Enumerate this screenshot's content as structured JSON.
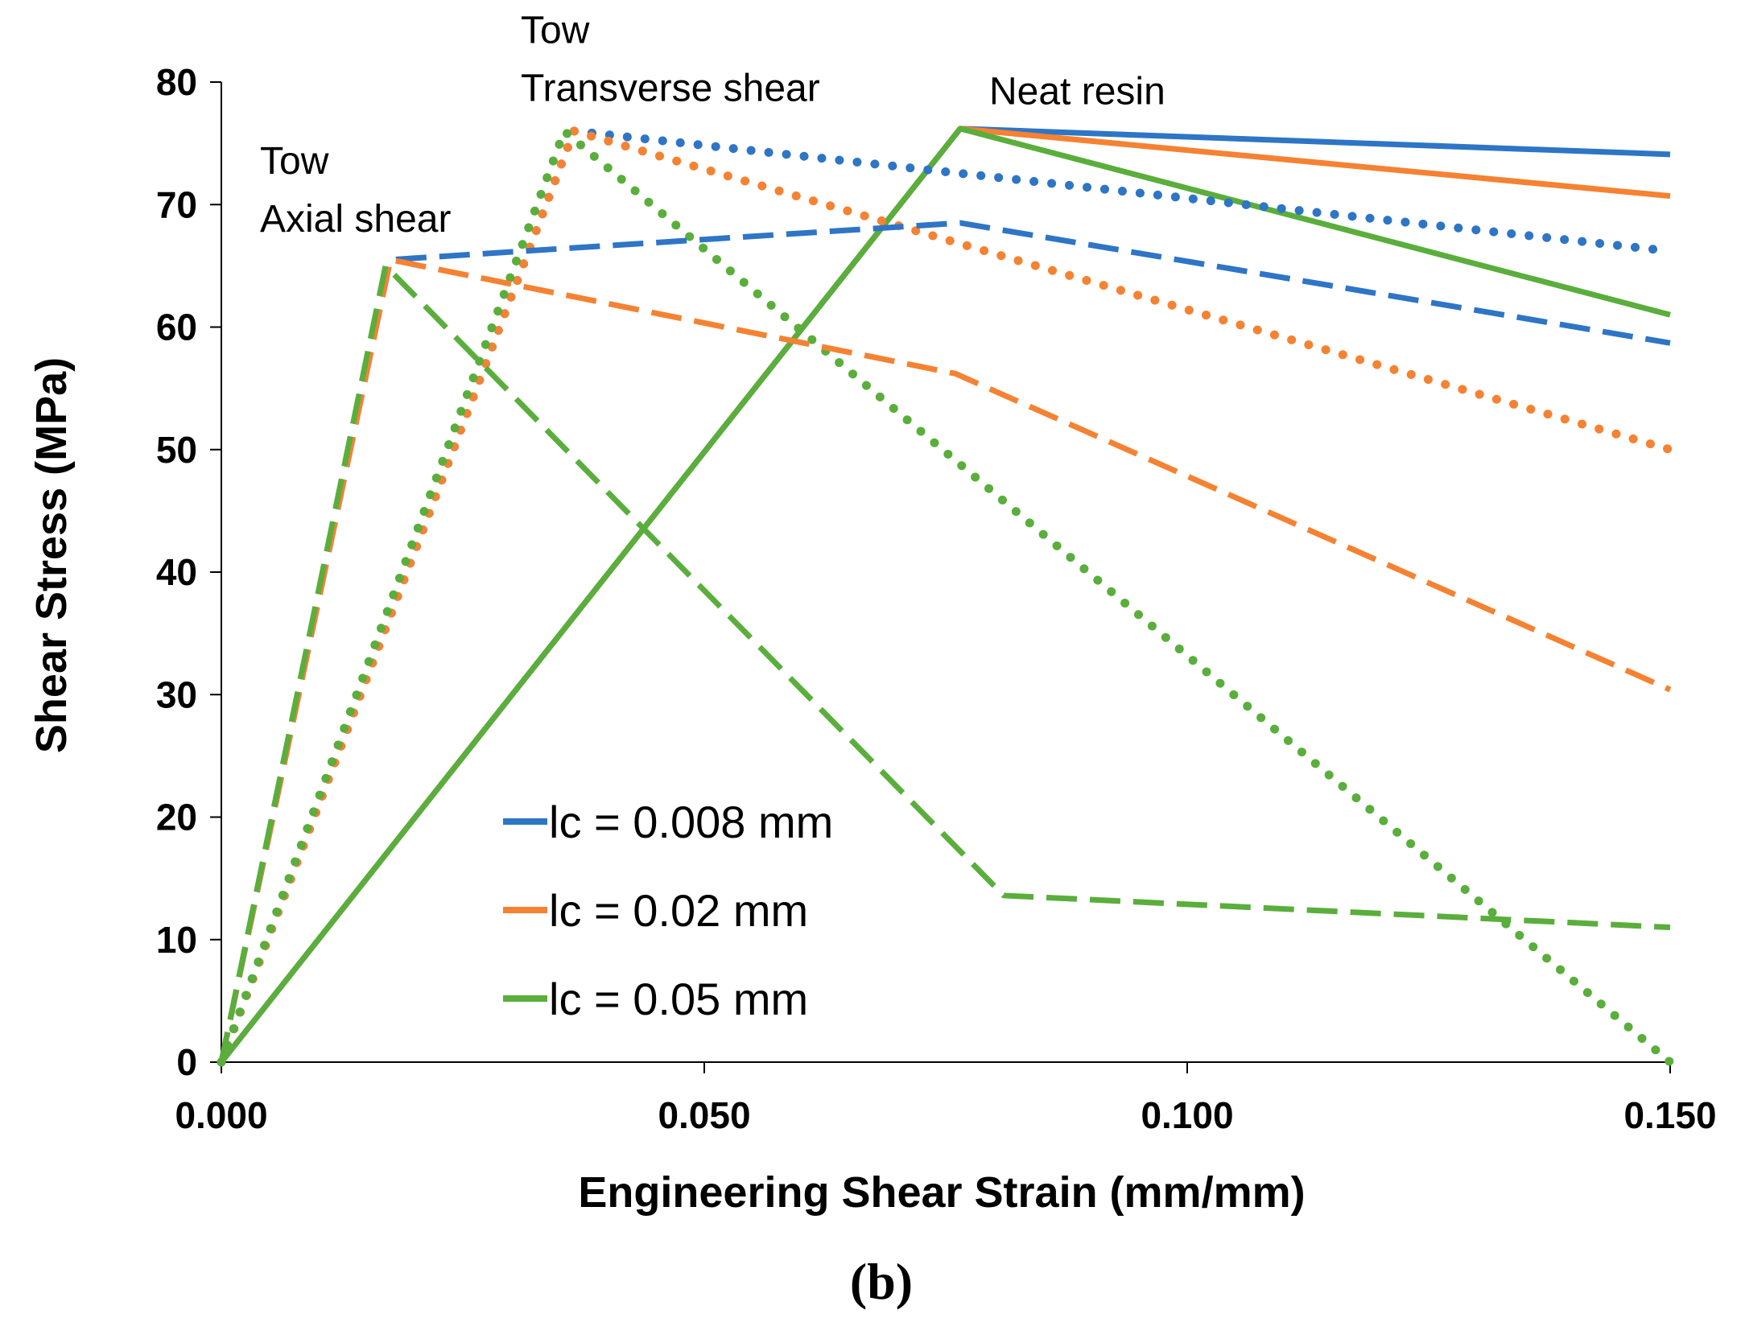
{
  "chart_data": {
    "type": "line",
    "xlabel": "Engineering Shear Strain (mm/mm)",
    "ylabel": "Shear Stress (MPa)",
    "caption": "(b)",
    "xlim": [
      0,
      0.15
    ],
    "ylim": [
      0,
      80
    ],
    "x_ticks": [
      0,
      0.05,
      0.1,
      0.15
    ],
    "x_tick_labels": [
      "0.000",
      "0.050",
      "0.100",
      "0.150"
    ],
    "y_ticks": [
      0,
      10,
      20,
      30,
      40,
      50,
      60,
      70,
      80
    ],
    "y_tick_labels": [
      "0",
      "10",
      "20",
      "30",
      "40",
      "50",
      "60",
      "70",
      "80"
    ],
    "grid": false,
    "legend_position": "bottom-center",
    "legend": [
      {
        "label": "lc = 0.008 mm",
        "color": "#2e75c6"
      },
      {
        "label": "lc = 0.02 mm",
        "color": "#f58232"
      },
      {
        "label": "lc = 0.05 mm",
        "color": "#5aae3c"
      }
    ],
    "annotations": [
      {
        "lines": [
          "Tow",
          "Axial shear"
        ],
        "x": 0.004,
        "y": 72.5
      },
      {
        "lines": [
          "Tow",
          "Transverse shear"
        ],
        "x": 0.031,
        "y": 83.2
      },
      {
        "lines": [
          "Neat resin"
        ],
        "x": 0.0795,
        "y": 78.2
      }
    ],
    "series": [
      {
        "group": "Neat resin",
        "lc": "0.008 mm",
        "color": "#2e75c6",
        "style": "solid",
        "x": [
          0,
          0.0765,
          0.15
        ],
        "y": [
          0,
          76.2,
          74.1
        ]
      },
      {
        "group": "Neat resin",
        "lc": "0.02 mm",
        "color": "#f58232",
        "style": "solid",
        "x": [
          0,
          0.0765,
          0.15
        ],
        "y": [
          0,
          76.2,
          70.7
        ]
      },
      {
        "group": "Neat resin",
        "lc": "0.05 mm",
        "color": "#5aae3c",
        "style": "solid",
        "x": [
          0,
          0.0765,
          0.15
        ],
        "y": [
          0,
          76.2,
          61.0
        ]
      },
      {
        "group": "Tow Transverse shear",
        "lc": "0.008 mm",
        "color": "#2e75c6",
        "style": "dotted",
        "x": [
          0,
          0.0365,
          0.15
        ],
        "y": [
          0,
          76.0,
          66.2
        ]
      },
      {
        "group": "Tow Transverse shear",
        "lc": "0.02 mm",
        "color": "#f58232",
        "style": "dotted",
        "x": [
          0,
          0.0365,
          0.08,
          0.15
        ],
        "y": [
          0,
          76.0,
          66.0,
          50.0
        ]
      },
      {
        "group": "Tow Transverse shear",
        "lc": "0.05 mm",
        "color": "#5aae3c",
        "style": "dotted",
        "x": [
          0,
          0.0355,
          0.15
        ],
        "y": [
          0,
          76.0,
          0
        ]
      },
      {
        "group": "Tow Axial shear",
        "lc": "0.008 mm",
        "color": "#2e75c6",
        "style": "dashed",
        "x": [
          0,
          0.0175,
          0.0765,
          0.15
        ],
        "y": [
          0,
          65.5,
          68.5,
          58.7
        ]
      },
      {
        "group": "Tow Axial shear",
        "lc": "0.02 mm",
        "color": "#f58232",
        "style": "dashed",
        "x": [
          0,
          0.0175,
          0.076,
          0.15
        ],
        "y": [
          0,
          65.5,
          56.2,
          30.4
        ]
      },
      {
        "group": "Tow Axial shear",
        "lc": "0.05 mm",
        "color": "#5aae3c",
        "style": "dashed",
        "x": [
          0,
          0.017,
          0.081,
          0.15
        ],
        "y": [
          0,
          65.0,
          13.6,
          11.0
        ]
      }
    ]
  }
}
